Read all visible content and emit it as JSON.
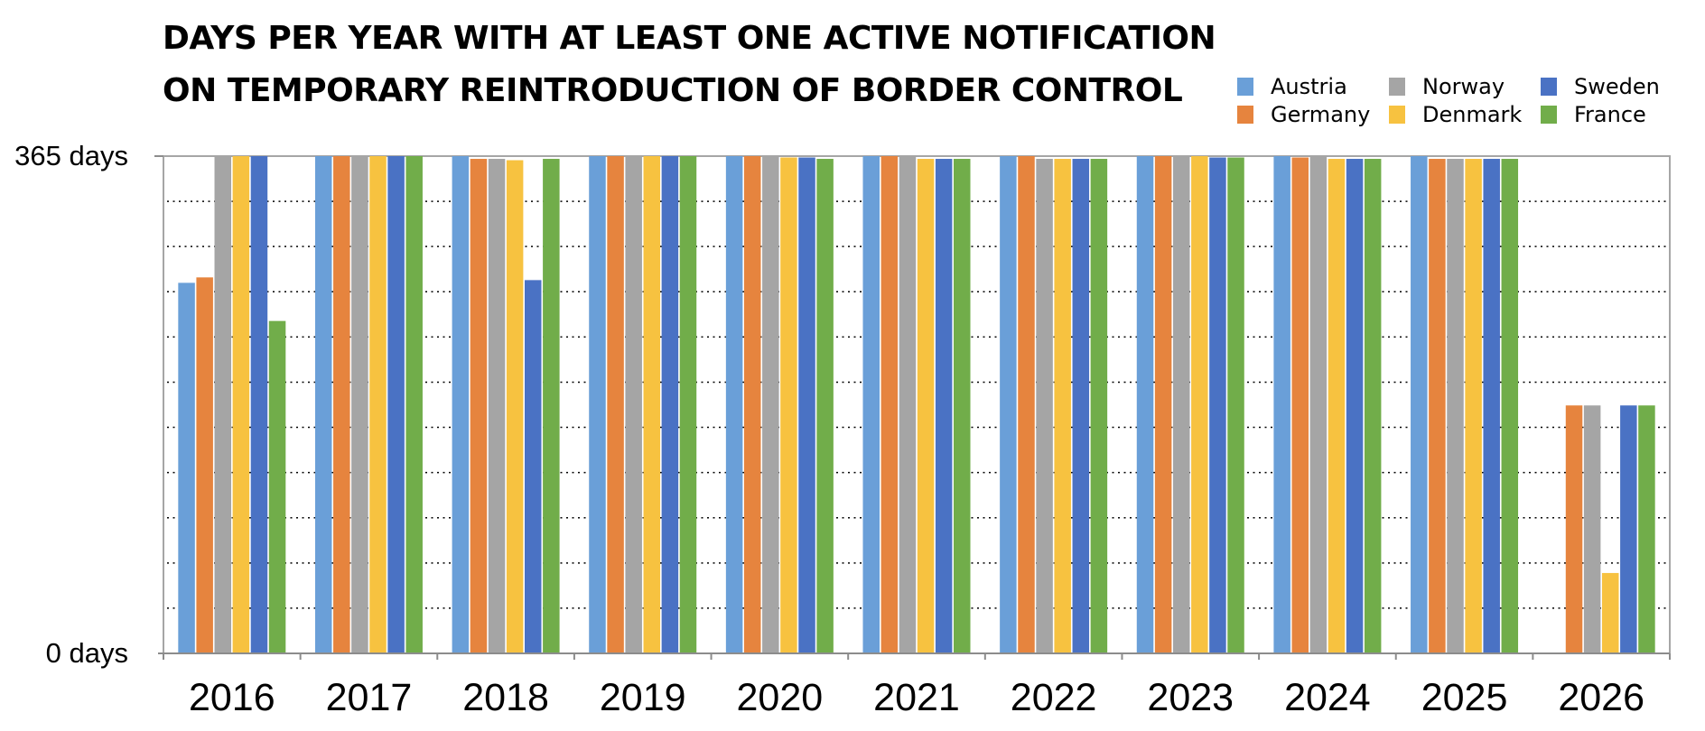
{
  "chart_data": {
    "type": "bar",
    "title": "DAYS PER YEAR WITH AT LEAST ONE ACTIVE NOTIFICATION ON TEMPORARY REINTRODUCTION OF BORDER CONTROL",
    "xlabel": "",
    "ylabel": "",
    "ylim": [
      0,
      365
    ],
    "y_tick_labels": [
      "0 days",
      "365 days"
    ],
    "grid": "dotted horizontal",
    "legend_position": "top-right",
    "categories": [
      "2016",
      "2017",
      "2018",
      "2019",
      "2020",
      "2021",
      "2022",
      "2023",
      "2024",
      "2025",
      "2026"
    ],
    "series": [
      {
        "name": "Austria",
        "color": "#6a9fd8",
        "values": [
          272,
          365,
          365,
          365,
          365,
          365,
          365,
          365,
          365,
          365,
          0
        ]
      },
      {
        "name": "Germany",
        "color": "#e6843e",
        "values": [
          276,
          365,
          363,
          365,
          365,
          365,
          365,
          365,
          364,
          363,
          182
        ]
      },
      {
        "name": "Norway",
        "color": "#a5a5a5",
        "values": [
          365,
          365,
          363,
          365,
          365,
          365,
          363,
          365,
          365,
          363,
          182
        ]
      },
      {
        "name": "Denmark",
        "color": "#f7c240",
        "values": [
          365,
          365,
          362,
          365,
          364,
          363,
          363,
          365,
          363,
          363,
          59
        ]
      },
      {
        "name": "Sweden",
        "color": "#4a72c4",
        "values": [
          365,
          365,
          274,
          365,
          364,
          363,
          363,
          364,
          363,
          363,
          182
        ]
      },
      {
        "name": "France",
        "color": "#71ad4a",
        "values": [
          244,
          365,
          363,
          365,
          363,
          363,
          363,
          364,
          363,
          363,
          182
        ]
      }
    ]
  }
}
